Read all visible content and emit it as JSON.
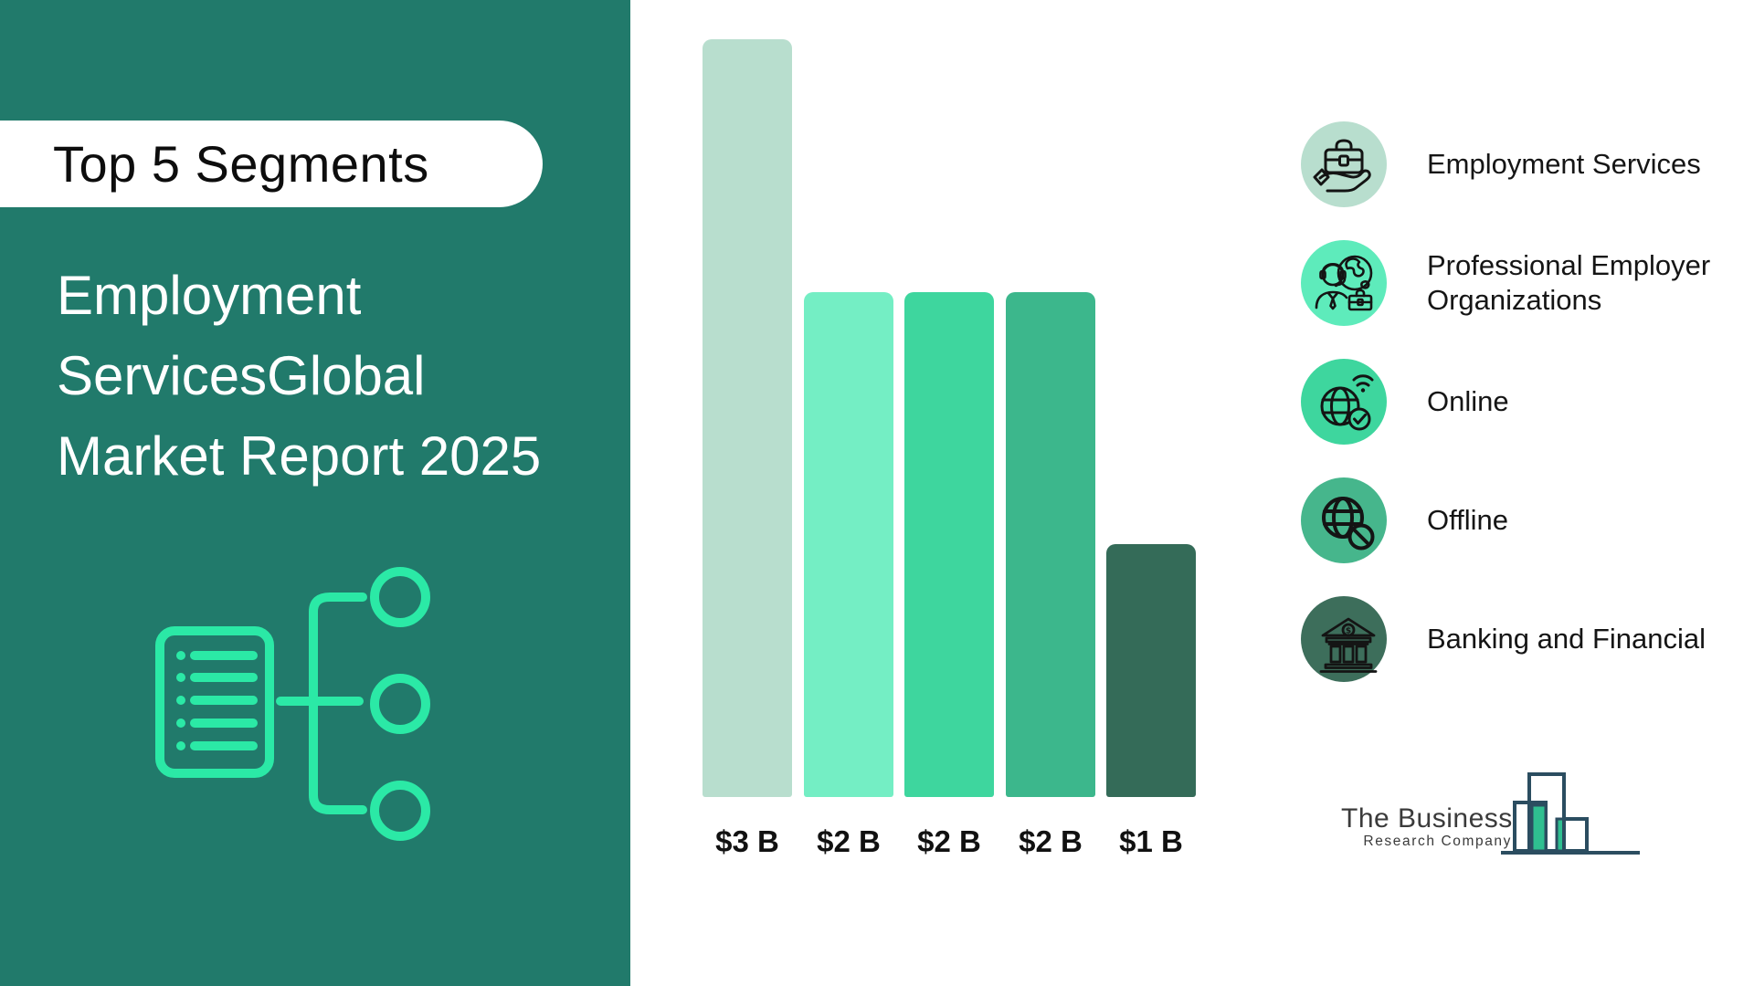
{
  "page": {
    "background": "#FFFFFF"
  },
  "sidebar": {
    "background_color": "#217A6B",
    "accent_color": "#2BE9A6",
    "badge": "Top 5 Segments",
    "title": "Employment ServicesGlobal Market Report 2025",
    "title_lines": [
      "Employment",
      "ServicesGlobal",
      "Market Report 2025"
    ],
    "diagram_icon": "document-list-flowchart-icon"
  },
  "chart_data": {
    "type": "bar",
    "title": "Top 5 Segments — Employment Services Global Market Report 2025",
    "unit": "USD billion",
    "categories": [
      "Employment Services",
      "Professional Employer Organizations",
      "Online",
      "Offline",
      "Banking and Financial"
    ],
    "values": [
      3,
      2,
      2,
      2,
      1
    ],
    "value_labels": [
      "$3 B",
      "$2 B",
      "$2 B",
      "$2 B",
      "$1 B"
    ],
    "bar_colors": [
      "#B8DECE",
      "#74EEC4",
      "#3ED69E",
      "#3CB78C",
      "#346B58"
    ],
    "ylim": [
      0,
      3
    ],
    "grid": false,
    "legend_position": "right"
  },
  "legend": {
    "items": [
      {
        "label": "Employment Services",
        "label_lines": [
          "Employment Services"
        ],
        "icon": "briefcase-hand-icon",
        "color": "#B8DECE"
      },
      {
        "label": "Professional Employer Organizations",
        "label_lines": [
          "Professional Employer",
          "Organizations"
        ],
        "icon": "support-agent-globe-icon",
        "color": "#5EEBBB"
      },
      {
        "label": "Online",
        "label_lines": [
          "Online"
        ],
        "icon": "globe-wifi-check-icon",
        "color": "#3ED69E"
      },
      {
        "label": "Offline",
        "label_lines": [
          "Offline"
        ],
        "icon": "globe-blocked-icon",
        "color": "#46B68C"
      },
      {
        "label": "Banking and Financial",
        "label_lines": [
          "Banking and Financial"
        ],
        "icon": "bank-icon",
        "color": "#3D6E5B"
      }
    ]
  },
  "logo": {
    "name": "The Business",
    "subname": "Research Company",
    "outline_color": "#2B4D60",
    "green_color": "#2FBF90"
  }
}
